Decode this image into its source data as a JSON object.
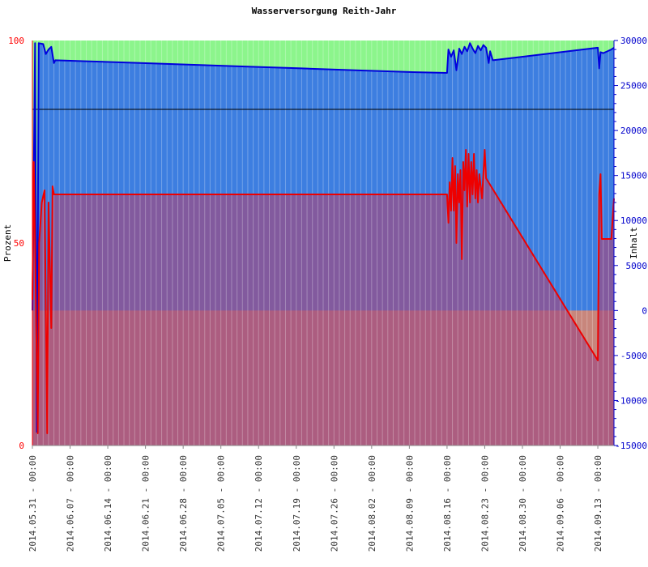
{
  "chart_data": {
    "type": "line",
    "title": "Wasserversorgung Reith-Jahr",
    "ylabel_left": "Prozent",
    "ylabel_right": "Inhalt",
    "y_left": {
      "min": 0,
      "max": 100,
      "ticks": [
        "0",
        "50",
        "100"
      ]
    },
    "y_right": {
      "min": -15000,
      "max": 30000,
      "ticks": [
        "-15000",
        "-10000",
        "-5000",
        "0",
        "5000",
        "10000",
        "15000",
        "20000",
        "25000",
        "30000"
      ]
    },
    "x_range": [
      "2014-05-31",
      "2014-09-16"
    ],
    "x_ticks": [
      "2014.05.31 - 00:00",
      "2014.06.07 - 00:00",
      "2014.06.14 - 00:00",
      "2014.06.21 - 00:00",
      "2014.06.28 - 00:00",
      "2014.07.05 - 00:00",
      "2014.07.12 - 00:00",
      "2014.07.19 - 00:00",
      "2014.07.26 - 00:00",
      "2014.08.02 - 00:00",
      "2014.08.09 - 00:00",
      "2014.08.16 - 00:00",
      "2014.08.23 - 00:00",
      "2014.08.30 - 00:00",
      "2014.09.06 - 00:00",
      "2014.09.13 - 00:00"
    ],
    "reference_line": {
      "axis": "left",
      "value": 83
    },
    "bands": [
      {
        "from": 0,
        "to": 33.4,
        "color": "#c8867c"
      },
      {
        "from": 33.4,
        "to": 100,
        "color": "#8cf58c"
      }
    ],
    "colors": {
      "inhalt": "#0000dd",
      "prozent": "#ee0000",
      "inhalt_fill": "#3d7ee0",
      "prozent_fill": "#a04b82",
      "axis_left": "#ff0000",
      "axis_right": "#0000cc"
    },
    "series": [
      {
        "axis": "right",
        "points": [
          [
            "2014-05-31T00:00",
            0
          ],
          [
            "2014-05-31T12:00",
            29700
          ],
          [
            "2014-05-31T20:00",
            -13500
          ],
          [
            "2014-06-01T04:00",
            29700
          ],
          [
            "2014-06-02T00:00",
            29600
          ],
          [
            "2014-06-02T12:00",
            28500
          ],
          [
            "2014-06-03T00:00",
            29000
          ],
          [
            "2014-06-03T12:00",
            29300
          ],
          [
            "2014-06-04T00:00",
            27500
          ],
          [
            "2014-06-04T06:00",
            27800
          ],
          [
            "2014-06-10T00:00",
            27700
          ],
          [
            "2014-06-20T00:00",
            27500
          ],
          [
            "2014-06-30T00:00",
            27300
          ],
          [
            "2014-07-10T00:00",
            27100
          ],
          [
            "2014-07-20T00:00",
            26900
          ],
          [
            "2014-07-30T00:00",
            26700
          ],
          [
            "2014-08-09T00:00",
            26500
          ],
          [
            "2014-08-16T00:00",
            26400
          ],
          [
            "2014-08-16T06:00",
            29000
          ],
          [
            "2014-08-16T18:00",
            28200
          ],
          [
            "2014-08-17T06:00",
            28900
          ],
          [
            "2014-08-17T18:00",
            26700
          ],
          [
            "2014-08-18T06:00",
            29100
          ],
          [
            "2014-08-18T18:00",
            28500
          ],
          [
            "2014-08-19T06:00",
            29300
          ],
          [
            "2014-08-19T18:00",
            28800
          ],
          [
            "2014-08-20T06:00",
            29700
          ],
          [
            "2014-08-20T18:00",
            29100
          ],
          [
            "2014-08-21T06:00",
            28600
          ],
          [
            "2014-08-21T18:00",
            29400
          ],
          [
            "2014-08-22T06:00",
            28900
          ],
          [
            "2014-08-22T18:00",
            29500
          ],
          [
            "2014-08-23T06:00",
            29200
          ],
          [
            "2014-08-23T18:00",
            27500
          ],
          [
            "2014-08-24T00:00",
            28800
          ],
          [
            "2014-08-24T12:00",
            27800
          ],
          [
            "2014-09-13T00:00",
            29200
          ],
          [
            "2014-09-13T06:00",
            26900
          ],
          [
            "2014-09-13T12:00",
            28700
          ],
          [
            "2014-09-14T00:00",
            28600
          ],
          [
            "2014-09-15T12:00",
            29000
          ],
          [
            "2014-09-16T00:00",
            29200
          ]
        ]
      },
      {
        "axis": "left",
        "points": [
          [
            "2014-05-31T00:00",
            36
          ],
          [
            "2014-05-31T06:00",
            70
          ],
          [
            "2014-05-31T12:00",
            50
          ],
          [
            "2014-06-01T00:00",
            3
          ],
          [
            "2014-06-01T06:00",
            50
          ],
          [
            "2014-06-01T18:00",
            60
          ],
          [
            "2014-06-02T06:00",
            63
          ],
          [
            "2014-06-02T18:00",
            3
          ],
          [
            "2014-06-03T00:00",
            60
          ],
          [
            "2014-06-03T12:00",
            29
          ],
          [
            "2014-06-03T18:00",
            64
          ],
          [
            "2014-06-04T00:00",
            62
          ],
          [
            "2014-08-16T00:00",
            62
          ],
          [
            "2014-08-16T06:00",
            55
          ],
          [
            "2014-08-16T12:00",
            65
          ],
          [
            "2014-08-16T18:00",
            58
          ],
          [
            "2014-08-17T00:00",
            71
          ],
          [
            "2014-08-17T06:00",
            58
          ],
          [
            "2014-08-17T12:00",
            69
          ],
          [
            "2014-08-17T18:00",
            50
          ],
          [
            "2014-08-18T00:00",
            67
          ],
          [
            "2014-08-18T06:00",
            60
          ],
          [
            "2014-08-18T12:00",
            68
          ],
          [
            "2014-08-18T18:00",
            46
          ],
          [
            "2014-08-19T00:00",
            70
          ],
          [
            "2014-08-19T06:00",
            63
          ],
          [
            "2014-08-19T12:00",
            73
          ],
          [
            "2014-08-19T18:00",
            59
          ],
          [
            "2014-08-20T00:00",
            72
          ],
          [
            "2014-08-20T06:00",
            60
          ],
          [
            "2014-08-20T12:00",
            70
          ],
          [
            "2014-08-20T18:00",
            62
          ],
          [
            "2014-08-21T00:00",
            72
          ],
          [
            "2014-08-21T06:00",
            61
          ],
          [
            "2014-08-21T12:00",
            68
          ],
          [
            "2014-08-21T18:00",
            60
          ],
          [
            "2014-08-22T00:00",
            67
          ],
          [
            "2014-08-22T12:00",
            61
          ],
          [
            "2014-08-23T00:00",
            73
          ],
          [
            "2014-08-23T06:00",
            66
          ],
          [
            "2014-09-13T00:00",
            21
          ],
          [
            "2014-09-13T06:00",
            62
          ],
          [
            "2014-09-13T12:00",
            67
          ],
          [
            "2014-09-13T18:00",
            51
          ],
          [
            "2014-09-15T12:00",
            51
          ],
          [
            "2014-09-16T00:00",
            61
          ]
        ]
      }
    ]
  }
}
